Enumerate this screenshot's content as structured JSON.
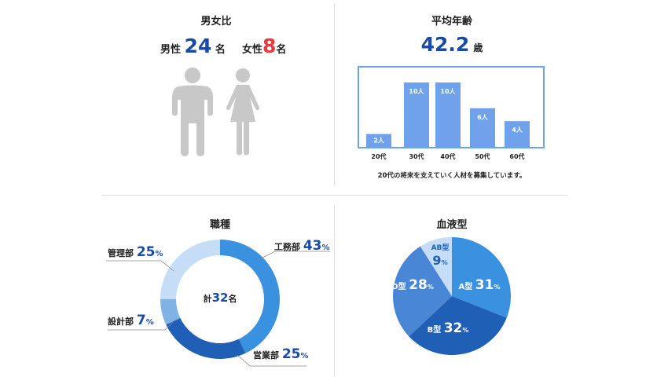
{
  "gender": {
    "title": "男女比",
    "male_label": "男性",
    "male_count": "24",
    "male_unit": "名",
    "female_label": "女性",
    "female_count": "8",
    "female_unit": "名",
    "male_fraction": 0.75,
    "female_fraction": 0.25,
    "colors": {
      "male": "#6fa2ea",
      "female": "#f47c7c",
      "neutral": "#c8c8c8"
    }
  },
  "age": {
    "title": "平均年齢",
    "average": "42.2",
    "unit": "歳",
    "note": "20代の将来を支えていく人材を募集しています。"
  },
  "job": {
    "title": "職種",
    "center_prefix": "計",
    "center_count": "32",
    "center_unit": "名"
  },
  "blood": {
    "title": "血液型"
  },
  "chart_data": [
    {
      "type": "bar",
      "title": "平均年齢",
      "categories": [
        "20代",
        "30代",
        "40代",
        "50代",
        "60代"
      ],
      "values": [
        2,
        10,
        10,
        6,
        4
      ],
      "value_labels": [
        "2人",
        "10人",
        "10人",
        "6人",
        "4人"
      ],
      "ylim": [
        0,
        12
      ],
      "color": "#6fa2ea"
    },
    {
      "type": "pie",
      "variant": "donut",
      "title": "職種",
      "slices": [
        {
          "name": "工務部",
          "value": 43,
          "label": "43",
          "color": "#3a91e0"
        },
        {
          "name": "営業部",
          "value": 25,
          "label": "25",
          "color": "#1f5fb5"
        },
        {
          "name": "設計部",
          "value": 7,
          "label": "7",
          "color": "#7fb2e5"
        },
        {
          "name": "管理部",
          "value": 25,
          "label": "25",
          "color": "#c5ddf7"
        }
      ],
      "unit": "%"
    },
    {
      "type": "pie",
      "title": "血液型",
      "slices": [
        {
          "name": "A型",
          "value": 31,
          "label": "31",
          "color": "#3a91e0"
        },
        {
          "name": "B型",
          "value": 32,
          "label": "32",
          "color": "#1f5fb5"
        },
        {
          "name": "O型",
          "value": 28,
          "label": "28",
          "color": "#4a86d6"
        },
        {
          "name": "AB型",
          "value": 9,
          "label": "9",
          "color": "#c5ddf7"
        }
      ],
      "unit": "%"
    }
  ]
}
